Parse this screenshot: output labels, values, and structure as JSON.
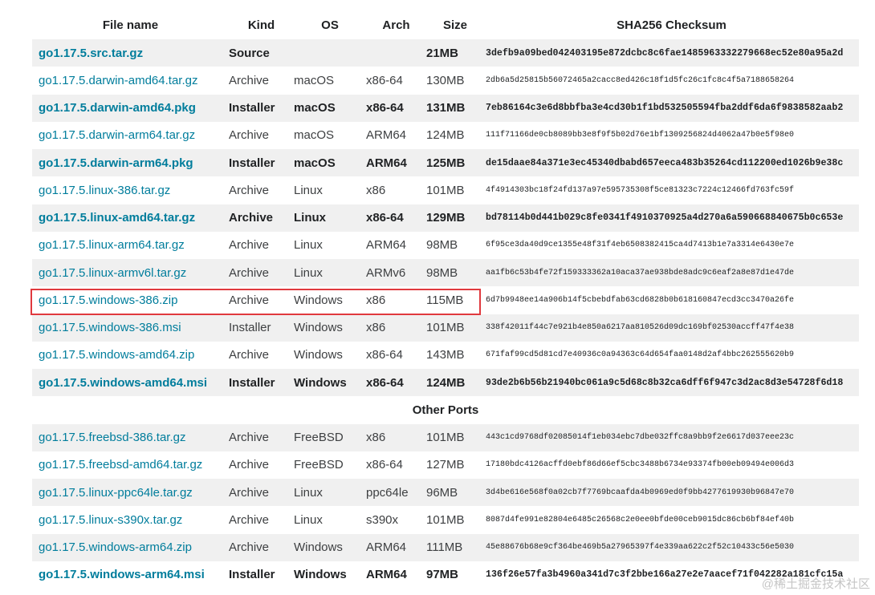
{
  "columns": [
    "File name",
    "Kind",
    "OS",
    "Arch",
    "Size",
    "SHA256 Checksum"
  ],
  "rows": [
    {
      "file": "go1.17.5.src.tar.gz",
      "kind": "Source",
      "os": "",
      "arch": "",
      "size": "21MB",
      "sha": "3defb9a09bed042403195e872dcbc8c6fae1485963332279668ec52e80a95a2d",
      "bold": true
    },
    {
      "file": "go1.17.5.darwin-amd64.tar.gz",
      "kind": "Archive",
      "os": "macOS",
      "arch": "x86-64",
      "size": "130MB",
      "sha": "2db6a5d25815b56072465a2cacc8ed426c18f1d5fc26c1fc8c4f5a7188658264",
      "bold": false
    },
    {
      "file": "go1.17.5.darwin-amd64.pkg",
      "kind": "Installer",
      "os": "macOS",
      "arch": "x86-64",
      "size": "131MB",
      "sha": "7eb86164c3e6d8bbfba3e4cd30b1f1bd532505594fba2ddf6da6f9838582aab2",
      "bold": true
    },
    {
      "file": "go1.17.5.darwin-arm64.tar.gz",
      "kind": "Archive",
      "os": "macOS",
      "arch": "ARM64",
      "size": "124MB",
      "sha": "111f71166de0cb8089bb3e8f9f5b02d76e1bf1309256824d4062a47b0e5f98e0",
      "bold": false
    },
    {
      "file": "go1.17.5.darwin-arm64.pkg",
      "kind": "Installer",
      "os": "macOS",
      "arch": "ARM64",
      "size": "125MB",
      "sha": "de15daae84a371e3ec45340dbabd657eeca483b35264cd112200ed1026b9e38c",
      "bold": true
    },
    {
      "file": "go1.17.5.linux-386.tar.gz",
      "kind": "Archive",
      "os": "Linux",
      "arch": "x86",
      "size": "101MB",
      "sha": "4f4914303bc18f24fd137a97e595735308f5ce81323c7224c12466fd763fc59f",
      "bold": false
    },
    {
      "file": "go1.17.5.linux-amd64.tar.gz",
      "kind": "Archive",
      "os": "Linux",
      "arch": "x86-64",
      "size": "129MB",
      "sha": "bd78114b0d441b029c8fe0341f4910370925a4d270a6a590668840675b0c653e",
      "bold": true
    },
    {
      "file": "go1.17.5.linux-arm64.tar.gz",
      "kind": "Archive",
      "os": "Linux",
      "arch": "ARM64",
      "size": "98MB",
      "sha": "6f95ce3da40d9ce1355e48f31f4eb6508382415ca4d7413b1e7a3314e6430e7e",
      "bold": false
    },
    {
      "file": "go1.17.5.linux-armv6l.tar.gz",
      "kind": "Archive",
      "os": "Linux",
      "arch": "ARMv6",
      "size": "98MB",
      "sha": "aa1fb6c53b4fe72f159333362a10aca37ae938bde8adc9c6eaf2a8e87d1e47de",
      "bold": false
    },
    {
      "file": "go1.17.5.windows-386.zip",
      "kind": "Archive",
      "os": "Windows",
      "arch": "x86",
      "size": "115MB",
      "sha": "6d7b9948ee14a906b14f5cbebdfab63cd6828b0b618160847ecd3cc3470a26fe",
      "bold": false
    },
    {
      "file": "go1.17.5.windows-386.msi",
      "kind": "Installer",
      "os": "Windows",
      "arch": "x86",
      "size": "101MB",
      "sha": "338f42011f44c7e921b4e850a6217aa810526d09dc169bf02530accff47f4e38",
      "bold": false
    },
    {
      "file": "go1.17.5.windows-amd64.zip",
      "kind": "Archive",
      "os": "Windows",
      "arch": "x86-64",
      "size": "143MB",
      "sha": "671faf99cd5d81cd7e40936c0a94363c64d654faa0148d2af4bbc262555620b9",
      "bold": false
    },
    {
      "file": "go1.17.5.windows-amd64.msi",
      "kind": "Installer",
      "os": "Windows",
      "arch": "x86-64",
      "size": "124MB",
      "sha": "93de2b6b56b21940bc061a9c5d68c8b32ca6dff6f947c3d2ac8d3e54728f6d18",
      "bold": true
    }
  ],
  "section_label": "Other Ports",
  "other_rows": [
    {
      "file": "go1.17.5.freebsd-386.tar.gz",
      "kind": "Archive",
      "os": "FreeBSD",
      "arch": "x86",
      "size": "101MB",
      "sha": "443c1cd9768df02085014f1eb034ebc7dbe032ffc8a9bb9f2e6617d037eee23c",
      "bold": false
    },
    {
      "file": "go1.17.5.freebsd-amd64.tar.gz",
      "kind": "Archive",
      "os": "FreeBSD",
      "arch": "x86-64",
      "size": "127MB",
      "sha": "17180bdc4126acffd0ebf86d66ef5cbc3488b6734e93374fb00eb09494e006d3",
      "bold": false
    },
    {
      "file": "go1.17.5.linux-ppc64le.tar.gz",
      "kind": "Archive",
      "os": "Linux",
      "arch": "ppc64le",
      "size": "96MB",
      "sha": "3d4be616e568f0a02cb7f7769bcaafda4b0969ed0f9bb4277619930b96847e70",
      "bold": false
    },
    {
      "file": "go1.17.5.linux-s390x.tar.gz",
      "kind": "Archive",
      "os": "Linux",
      "arch": "s390x",
      "size": "101MB",
      "sha": "8087d4fe991e82804e6485c26568c2e0ee0bfde00ceb9015dc86cb6bf84ef40b",
      "bold": false
    },
    {
      "file": "go1.17.5.windows-arm64.zip",
      "kind": "Archive",
      "os": "Windows",
      "arch": "ARM64",
      "size": "111MB",
      "sha": "45e88676b68e9cf364be469b5a27965397f4e339aa622c2f52c10433c56e5030",
      "bold": false
    },
    {
      "file": "go1.17.5.windows-arm64.msi",
      "kind": "Installer",
      "os": "Windows",
      "arch": "ARM64",
      "size": "97MB",
      "sha": "136f26e57fa3b4960a341d7c3f2bbe166a27e2e7aacef71f042282a181cfc15a",
      "bold": true
    }
  ],
  "highlighted_file": "go1.17.5.windows-386.zip",
  "colors": {
    "link": "#007d9c",
    "stripe": "#f0f0f0",
    "highlight_border": "#e0393e"
  },
  "watermark": "@稀土掘金技术社区"
}
